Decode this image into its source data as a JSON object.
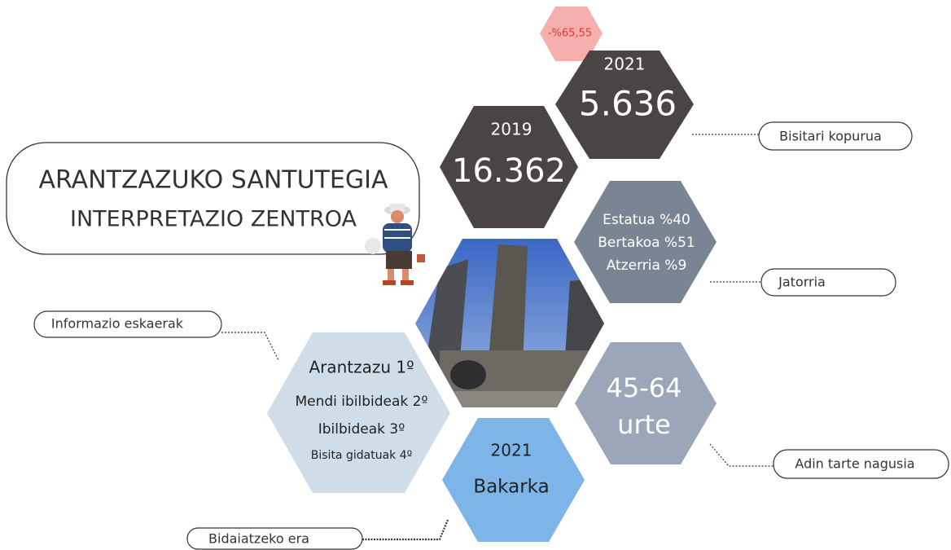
{
  "title": {
    "line1": "ARANTZAZUKO SANTUTEGIA",
    "line2": "INTERPRETAZIO ZENTROA"
  },
  "badge": "-%65,55",
  "hexes": {
    "visitors_2021": {
      "year": "2021",
      "value": "5.636"
    },
    "visitors_2019": {
      "year": "2019",
      "value": "16.362"
    },
    "origin": {
      "lines": [
        "Estatua %40",
        "Bertakoa %51",
        "Atzerria %9"
      ]
    },
    "age": {
      "lines": [
        "45-64",
        "urte"
      ]
    },
    "info": {
      "lines": [
        "Arantzazu 1º",
        "Mendi ibilbideak 2º",
        "Ibilbideak 3º",
        "Bisita gidatuak 4º"
      ]
    },
    "travel": {
      "lines": [
        "2021",
        "Bakarka"
      ]
    }
  },
  "labels": {
    "visitors": "Bisitari kopurua",
    "origin": "Jatorria",
    "age": "Adin tarte nagusia",
    "info": "Informazio eskaerak",
    "travel": "Bidaiatzeko era"
  }
}
